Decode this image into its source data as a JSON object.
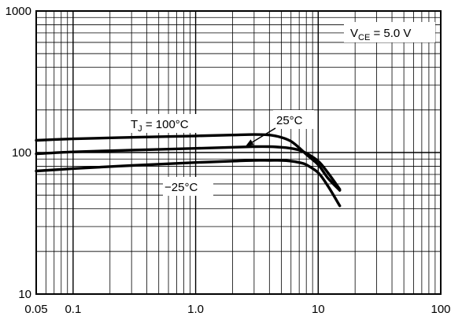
{
  "chart_data": {
    "type": "line",
    "title": "",
    "xlabel": "",
    "ylabel": "",
    "x_scale": "log",
    "y_scale": "log",
    "xlim": [
      0.05,
      100
    ],
    "ylim": [
      10,
      1000
    ],
    "grid": true,
    "x_major_ticks": [
      0.05,
      0.1,
      1.0,
      10,
      100
    ],
    "x_tick_labels": [
      "0.05",
      "0.1",
      "1.0",
      "10",
      "100"
    ],
    "y_major_ticks": [
      10,
      100,
      1000
    ],
    "y_tick_labels": [
      "10",
      "100",
      "1000"
    ],
    "annotations": {
      "vce_main": "V",
      "vce_sub": "CE",
      "vce_rest": " = 5.0 V",
      "tj_main": "T",
      "tj_sub": "J",
      "tj_rest": " = 100°C",
      "t25": "25°C",
      "tneg25": "−25°C"
    },
    "series": [
      {
        "label_key": "tj",
        "points": [
          [
            0.05,
            122
          ],
          [
            0.1,
            125
          ],
          [
            0.3,
            128
          ],
          [
            1.0,
            131
          ],
          [
            2.0,
            133
          ],
          [
            3.0,
            134
          ],
          [
            4.0,
            133
          ],
          [
            5.0,
            128
          ],
          [
            6.0,
            120
          ],
          [
            7.0,
            108
          ],
          [
            8.0,
            97
          ],
          [
            10,
            82
          ],
          [
            12,
            66
          ],
          [
            15,
            54
          ]
        ]
      },
      {
        "label_key": "t25",
        "points": [
          [
            0.05,
            98
          ],
          [
            0.1,
            101
          ],
          [
            0.3,
            104
          ],
          [
            1.0,
            107
          ],
          [
            2.0,
            109
          ],
          [
            3.0,
            110
          ],
          [
            4.0,
            110
          ],
          [
            5.0,
            109
          ],
          [
            6.0,
            107
          ],
          [
            7.0,
            104
          ],
          [
            8.0,
            99
          ],
          [
            10,
            87
          ],
          [
            12,
            72
          ],
          [
            15,
            55
          ]
        ]
      },
      {
        "label_key": "tneg25",
        "points": [
          [
            0.05,
            74
          ],
          [
            0.1,
            77
          ],
          [
            0.3,
            81
          ],
          [
            1.0,
            85
          ],
          [
            2.0,
            87
          ],
          [
            3.0,
            88
          ],
          [
            4.0,
            88
          ],
          [
            5.0,
            88
          ],
          [
            6.0,
            87
          ],
          [
            7.0,
            85
          ],
          [
            8.0,
            82
          ],
          [
            10,
            72
          ],
          [
            12,
            58
          ],
          [
            15,
            42
          ]
        ]
      }
    ]
  }
}
